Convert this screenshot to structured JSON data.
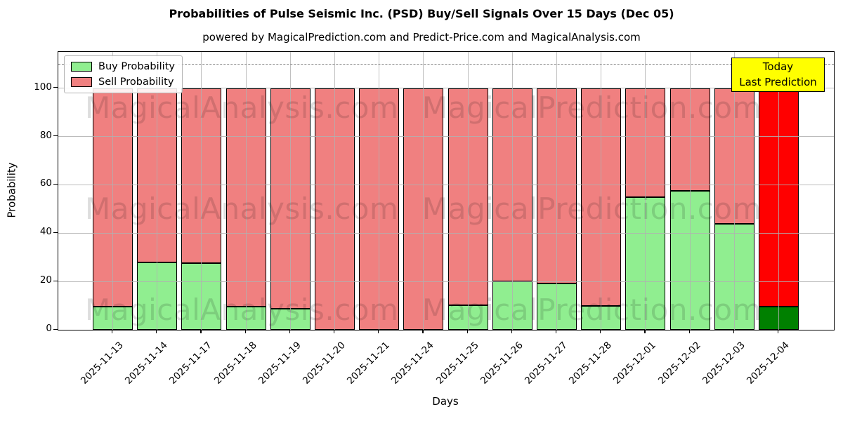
{
  "chart_data": {
    "type": "bar",
    "stacked": true,
    "title": "Probabilities of Pulse Seismic Inc. (PSD) Buy/Sell Signals Over 15 Days (Dec 05)",
    "subtitle": "powered by MagicalPrediction.com and Predict-Price.com and MagicalAnalysis.com",
    "xlabel": "Days",
    "ylabel": "Probability",
    "ylim": [
      0,
      115
    ],
    "yticks": [
      0,
      20,
      40,
      60,
      80,
      100
    ],
    "grid": true,
    "dashed_line_y": 110,
    "legend_position": "upper-left",
    "categories": [
      "2025-11-13",
      "2025-11-14",
      "2025-11-17",
      "2025-11-18",
      "2025-11-19",
      "2025-11-20",
      "2025-11-21",
      "2025-11-24",
      "2025-11-25",
      "2025-11-26",
      "2025-11-27",
      "2025-11-28",
      "2025-12-01",
      "2025-12-02",
      "2025-12-03",
      "2025-12-04"
    ],
    "series": [
      {
        "name": "Buy Probability",
        "color": "#90ee90",
        "today_color": "#008000",
        "values": [
          9.5,
          28,
          27.5,
          9.5,
          8.7,
          0,
          0,
          0,
          10.3,
          20,
          19.3,
          9.8,
          55,
          57.5,
          44,
          9.5
        ]
      },
      {
        "name": "Sell Probability",
        "color": "#f08080",
        "today_color": "#ff0000",
        "values": [
          90.5,
          72,
          72.5,
          90.5,
          91.3,
          100,
          100,
          100,
          89.7,
          80,
          80.7,
          90.2,
          45,
          42.5,
          56,
          90.5
        ]
      }
    ],
    "today_index": 15,
    "annotation_box": {
      "line1": "Today",
      "line2": "Last Prediction",
      "bg": "#ffff00"
    },
    "watermarks": [
      "MagicalAnalysis.com",
      "MagicalPrediction.com"
    ]
  }
}
